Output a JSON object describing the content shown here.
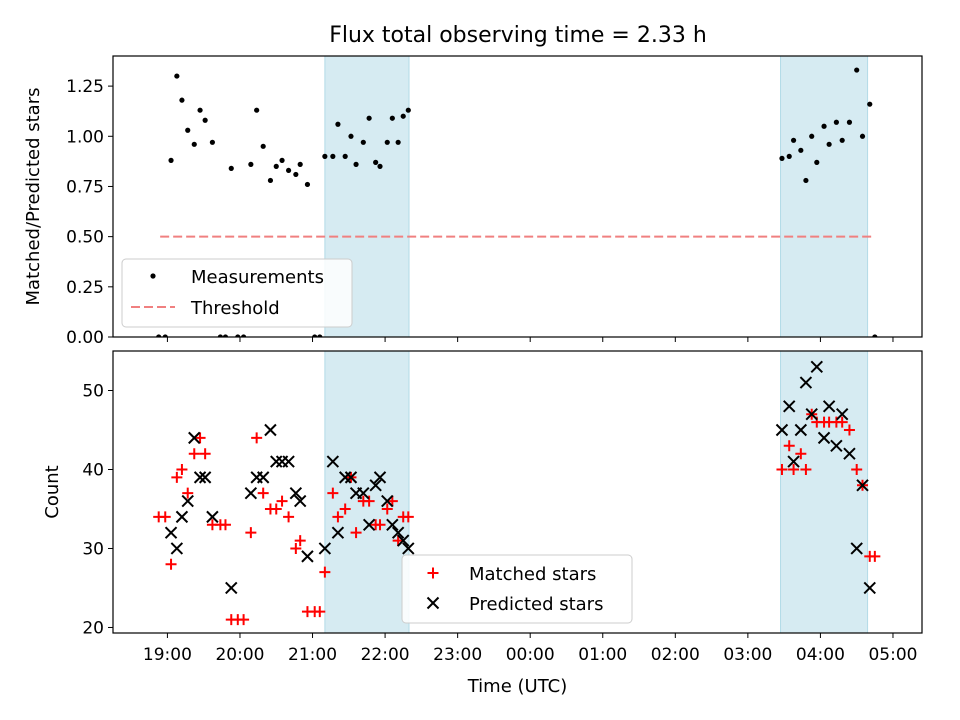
{
  "title": "Flux total observing time = 2.33 h",
  "chart_data": [
    {
      "type": "scatter",
      "ylabel": "Matched/Predicted stars",
      "xlabel": "",
      "x_unit": "hours (UTC, continuing past midnight)",
      "xlim": [
        18.25,
        29.4
      ],
      "ylim": [
        0,
        1.4
      ],
      "yticks": [
        "0.00",
        "0.25",
        "0.50",
        "0.75",
        "1.00",
        "1.25"
      ],
      "highlight_spans": [
        [
          21.17,
          22.33
        ],
        [
          27.45,
          28.65
        ]
      ],
      "threshold": {
        "value": 0.5,
        "x_start": 18.9,
        "x_end": 28.75,
        "color": "#f08080",
        "style": "dashed"
      },
      "legend": {
        "location": "lower-left",
        "entries": [
          "Measurements",
          "Threshold"
        ]
      },
      "series": [
        {
          "name": "Measurements",
          "marker": "dot",
          "color": "#000000",
          "points": [
            [
              18.88,
              0.0
            ],
            [
              18.97,
              0.0
            ],
            [
              19.05,
              0.88
            ],
            [
              19.13,
              1.3
            ],
            [
              19.2,
              1.18
            ],
            [
              19.28,
              1.03
            ],
            [
              19.37,
              0.96
            ],
            [
              19.45,
              1.13
            ],
            [
              19.52,
              1.08
            ],
            [
              19.62,
              0.97
            ],
            [
              19.73,
              0.0
            ],
            [
              19.8,
              0.0
            ],
            [
              19.88,
              0.84
            ],
            [
              19.97,
              0.0
            ],
            [
              20.05,
              0.0
            ],
            [
              20.15,
              0.86
            ],
            [
              20.23,
              1.13
            ],
            [
              20.32,
              0.95
            ],
            [
              20.42,
              0.78
            ],
            [
              20.5,
              0.85
            ],
            [
              20.58,
              0.88
            ],
            [
              20.67,
              0.83
            ],
            [
              20.77,
              0.81
            ],
            [
              20.83,
              0.86
            ],
            [
              20.93,
              0.76
            ],
            [
              21.03,
              0.0
            ],
            [
              21.1,
              0.0
            ],
            [
              21.17,
              0.9
            ],
            [
              21.28,
              0.9
            ],
            [
              21.35,
              1.06
            ],
            [
              21.45,
              0.9
            ],
            [
              21.53,
              1.0
            ],
            [
              21.6,
              0.86
            ],
            [
              21.7,
              0.97
            ],
            [
              21.78,
              1.09
            ],
            [
              21.87,
              0.87
            ],
            [
              21.93,
              0.85
            ],
            [
              22.03,
              0.97
            ],
            [
              22.1,
              1.09
            ],
            [
              22.18,
              0.97
            ],
            [
              22.25,
              1.1
            ],
            [
              22.32,
              1.13
            ],
            [
              27.47,
              0.89
            ],
            [
              27.57,
              0.9
            ],
            [
              27.63,
              0.98
            ],
            [
              27.73,
              0.93
            ],
            [
              27.8,
              0.78
            ],
            [
              27.88,
              1.0
            ],
            [
              27.95,
              0.87
            ],
            [
              28.05,
              1.05
            ],
            [
              28.12,
              0.96
            ],
            [
              28.22,
              1.07
            ],
            [
              28.3,
              0.98
            ],
            [
              28.4,
              1.07
            ],
            [
              28.5,
              1.33
            ],
            [
              28.58,
              1.0
            ],
            [
              28.68,
              1.16
            ],
            [
              28.75,
              0.0
            ]
          ]
        }
      ]
    },
    {
      "type": "scatter",
      "ylabel": "Count",
      "xlabel": "Time (UTC)",
      "x_unit": "hours (UTC, continuing past midnight)",
      "xlim": [
        18.25,
        29.4
      ],
      "ylim": [
        19.3,
        55
      ],
      "yticks": [
        "20",
        "30",
        "40",
        "50"
      ],
      "xticks": [
        "19:00",
        "20:00",
        "21:00",
        "22:00",
        "23:00",
        "00:00",
        "01:00",
        "02:00",
        "03:00",
        "04:00",
        "05:00"
      ],
      "highlight_spans": [
        [
          21.17,
          22.33
        ],
        [
          27.45,
          28.65
        ]
      ],
      "legend": {
        "location": "lower-center",
        "entries": [
          "Matched stars",
          "Predicted stars"
        ]
      },
      "series": [
        {
          "name": "Matched stars",
          "marker": "plus",
          "color": "#ff0000",
          "points": [
            [
              18.88,
              34
            ],
            [
              18.97,
              34
            ],
            [
              19.05,
              28
            ],
            [
              19.13,
              39
            ],
            [
              19.2,
              40
            ],
            [
              19.28,
              37
            ],
            [
              19.37,
              42
            ],
            [
              19.45,
              44
            ],
            [
              19.52,
              42
            ],
            [
              19.62,
              33
            ],
            [
              19.73,
              33
            ],
            [
              19.8,
              33
            ],
            [
              19.88,
              21
            ],
            [
              19.97,
              21
            ],
            [
              20.05,
              21
            ],
            [
              20.15,
              32
            ],
            [
              20.23,
              44
            ],
            [
              20.32,
              37
            ],
            [
              20.42,
              35
            ],
            [
              20.5,
              35
            ],
            [
              20.58,
              36
            ],
            [
              20.67,
              34
            ],
            [
              20.77,
              30
            ],
            [
              20.83,
              31
            ],
            [
              20.93,
              22
            ],
            [
              21.03,
              22
            ],
            [
              21.1,
              22
            ],
            [
              21.17,
              27
            ],
            [
              21.28,
              37
            ],
            [
              21.35,
              34
            ],
            [
              21.45,
              35
            ],
            [
              21.53,
              39
            ],
            [
              21.6,
              32
            ],
            [
              21.7,
              36
            ],
            [
              21.78,
              36
            ],
            [
              21.87,
              33
            ],
            [
              21.93,
              33
            ],
            [
              22.03,
              35
            ],
            [
              22.1,
              36
            ],
            [
              22.18,
              31
            ],
            [
              22.25,
              34
            ],
            [
              22.32,
              34
            ],
            [
              27.47,
              40
            ],
            [
              27.57,
              43
            ],
            [
              27.63,
              40
            ],
            [
              27.73,
              42
            ],
            [
              27.8,
              40
            ],
            [
              27.88,
              47
            ],
            [
              27.95,
              46
            ],
            [
              28.05,
              46
            ],
            [
              28.12,
              46
            ],
            [
              28.22,
              46
            ],
            [
              28.3,
              46
            ],
            [
              28.4,
              45
            ],
            [
              28.5,
              40
            ],
            [
              28.58,
              38
            ],
            [
              28.68,
              29
            ],
            [
              28.75,
              29
            ]
          ]
        },
        {
          "name": "Predicted stars",
          "marker": "x",
          "color": "#000000",
          "points": [
            [
              19.05,
              32
            ],
            [
              19.13,
              30
            ],
            [
              19.2,
              34
            ],
            [
              19.28,
              36
            ],
            [
              19.37,
              44
            ],
            [
              19.45,
              39
            ],
            [
              19.52,
              39
            ],
            [
              19.62,
              34
            ],
            [
              19.88,
              25
            ],
            [
              20.15,
              37
            ],
            [
              20.23,
              39
            ],
            [
              20.32,
              39
            ],
            [
              20.42,
              45
            ],
            [
              20.5,
              41
            ],
            [
              20.58,
              41
            ],
            [
              20.67,
              41
            ],
            [
              20.77,
              37
            ],
            [
              20.83,
              36
            ],
            [
              20.93,
              29
            ],
            [
              21.17,
              30
            ],
            [
              21.28,
              41
            ],
            [
              21.35,
              32
            ],
            [
              21.45,
              39
            ],
            [
              21.53,
              39
            ],
            [
              21.6,
              37
            ],
            [
              21.7,
              37
            ],
            [
              21.78,
              33
            ],
            [
              21.87,
              38
            ],
            [
              21.93,
              39
            ],
            [
              22.03,
              36
            ],
            [
              22.1,
              33
            ],
            [
              22.18,
              32
            ],
            [
              22.25,
              31
            ],
            [
              22.32,
              30
            ],
            [
              27.47,
              45
            ],
            [
              27.57,
              48
            ],
            [
              27.63,
              41
            ],
            [
              27.73,
              45
            ],
            [
              27.8,
              51
            ],
            [
              27.88,
              47
            ],
            [
              27.95,
              53
            ],
            [
              28.05,
              44
            ],
            [
              28.12,
              48
            ],
            [
              28.22,
              43
            ],
            [
              28.3,
              47
            ],
            [
              28.4,
              42
            ],
            [
              28.5,
              30
            ],
            [
              28.58,
              38
            ],
            [
              28.68,
              25
            ]
          ]
        }
      ]
    }
  ]
}
